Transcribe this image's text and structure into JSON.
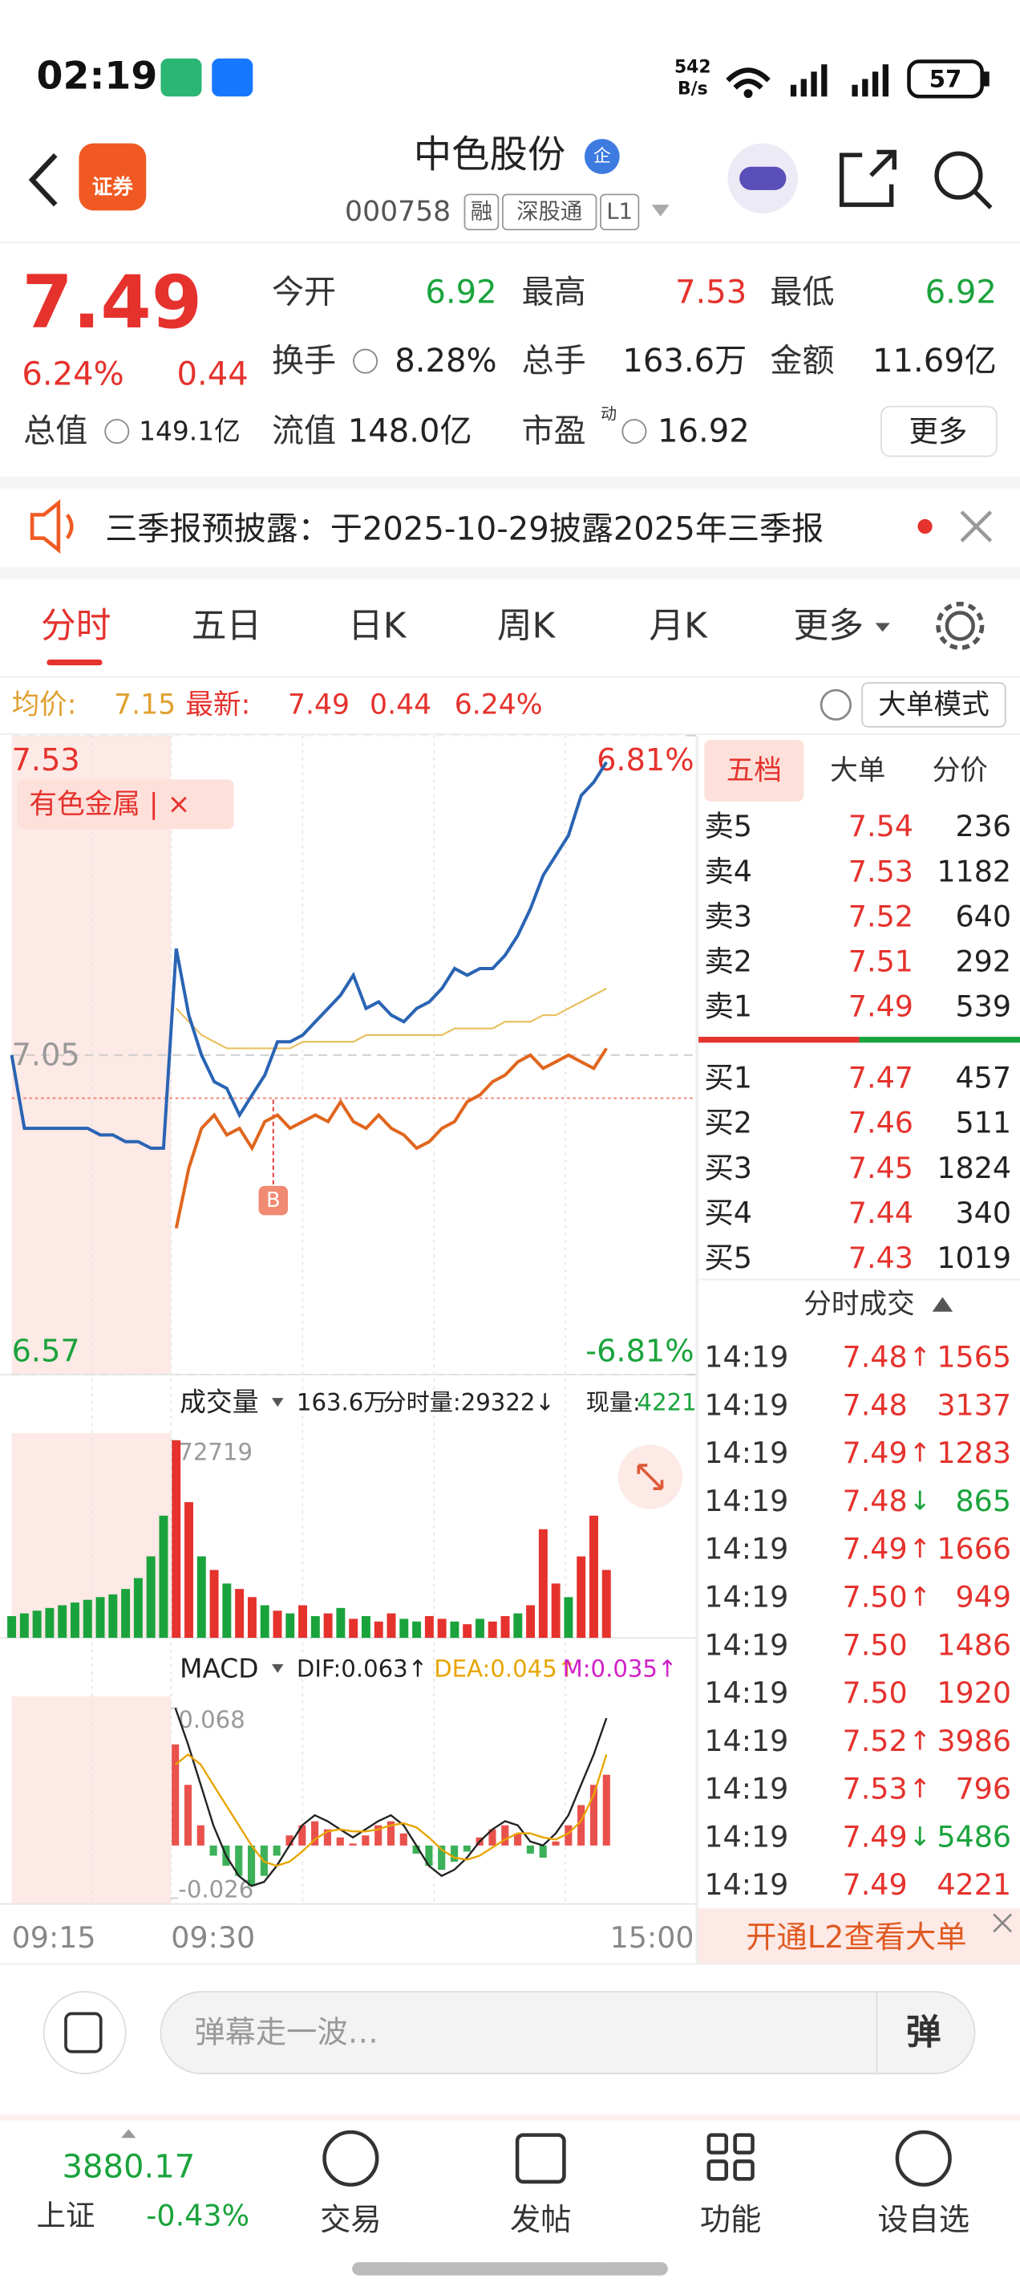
{
  "status_bar": {
    "time": "02:19",
    "net_speed": "542",
    "net_unit": "B/s",
    "battery": "57"
  },
  "header": {
    "logo": "证券",
    "title": "中色股份",
    "badge": "企",
    "code": "000758",
    "tags": [
      "融",
      "深股通",
      "L1"
    ]
  },
  "quote": {
    "price": "7.49",
    "change_pct": "6.24%",
    "change": "0.44",
    "fields": [
      {
        "label": "今开",
        "value": "6.92"
      },
      {
        "label": "最高",
        "value": "7.53"
      },
      {
        "label": "最低",
        "value": "6.92"
      },
      {
        "label": "换手",
        "value": "8.28%"
      },
      {
        "label": "总手",
        "value": "163.6万"
      },
      {
        "label": "金额",
        "value": "11.69亿"
      },
      {
        "label": "总值",
        "value": "149.1亿"
      },
      {
        "label": "流值",
        "value": "148.0亿"
      },
      {
        "label": "市盈",
        "sup": "动",
        "value": "16.92"
      }
    ],
    "more": "更多"
  },
  "notice": {
    "text": "三季报预披露：于2025-10-29披露2025年三季报"
  },
  "tabs": [
    "分时",
    "五日",
    "日K",
    "周K",
    "月K",
    "更多"
  ],
  "info_bar": {
    "avg_label": "均价:",
    "avg": "7.15",
    "latest_label": "最新:",
    "latest": "7.49",
    "change": "0.44",
    "change_pct": "6.24%",
    "mode": "大单模式"
  },
  "chart_data": [
    {
      "type": "line",
      "tag": "有色金属 | ×",
      "marker": "B",
      "x_labels": [
        "09:15",
        "09:30",
        "15:00"
      ],
      "ylim": [
        6.57,
        7.53
      ],
      "yticks": [
        6.57,
        7.05,
        7.53
      ],
      "y2lim": [
        -6.81,
        6.81
      ],
      "y2ticks": [
        {
          "value": -6.81,
          "label": "-6.81%"
        },
        {
          "value": 6.81,
          "label": "6.81%"
        }
      ],
      "series": [
        {
          "color": "#2a64b4",
          "values": [
            7.05,
            6.94,
            6.94,
            6.94,
            6.94,
            6.94,
            6.94,
            6.93,
            6.93,
            6.92,
            6.92,
            6.91,
            6.91,
            7.21,
            7.11,
            7.05,
            7.01,
            7.0,
            6.96,
            6.99,
            7.02,
            7.07,
            7.07,
            7.08,
            7.1,
            7.12,
            7.14,
            7.17,
            7.12,
            7.13,
            7.11,
            7.1,
            7.12,
            7.13,
            7.15,
            7.18,
            7.17,
            7.18,
            7.18,
            7.2,
            7.23,
            7.27,
            7.32,
            7.35,
            7.38,
            7.44,
            7.46,
            7.49
          ]
        },
        {
          "color": "#e8c060",
          "values": [
            null,
            null,
            null,
            null,
            null,
            null,
            null,
            null,
            null,
            null,
            null,
            null,
            null,
            7.12,
            7.1,
            7.08,
            7.07,
            7.06,
            7.06,
            7.06,
            7.06,
            7.06,
            7.06,
            7.07,
            7.07,
            7.07,
            7.07,
            7.07,
            7.08,
            7.08,
            7.08,
            7.08,
            7.08,
            7.08,
            7.08,
            7.09,
            7.09,
            7.09,
            7.09,
            7.1,
            7.1,
            7.1,
            7.11,
            7.11,
            7.12,
            7.13,
            7.14,
            7.15
          ]
        },
        {
          "color": "#e0661e",
          "values": [
            null,
            null,
            null,
            null,
            null,
            null,
            null,
            null,
            null,
            null,
            null,
            null,
            null,
            6.79,
            6.88,
            6.94,
            6.96,
            6.93,
            6.94,
            6.91,
            6.95,
            6.96,
            6.94,
            6.95,
            6.96,
            6.95,
            6.98,
            6.95,
            6.94,
            6.96,
            6.94,
            6.93,
            6.91,
            6.92,
            6.94,
            6.95,
            6.98,
            6.99,
            7.01,
            7.02,
            7.04,
            7.05,
            7.03,
            7.04,
            7.05,
            7.04,
            7.03,
            7.06
          ]
        }
      ]
    },
    {
      "type": "bar",
      "title": "成交量",
      "total": "163.6万",
      "period_volume": "分时量:29322↓",
      "current_label": "现量:",
      "current": "4221",
      "ylim": [
        0,
        72719
      ],
      "yticks": [
        72719
      ],
      "values": [
        8000,
        9000,
        10000,
        11000,
        12000,
        13000,
        14000,
        15000,
        16000,
        18000,
        22000,
        30000,
        45000,
        72719,
        50000,
        30000,
        25000,
        20000,
        18000,
        15000,
        12000,
        10000,
        9000,
        12000,
        8000,
        9000,
        11000,
        7000,
        8000,
        6000,
        9000,
        7000,
        6000,
        8000,
        7000,
        6000,
        5000,
        7000,
        6000,
        8000,
        9000,
        12000,
        40000,
        20000,
        15000,
        30000,
        45000,
        25000
      ],
      "colors": [
        "#1aa33c",
        "#1aa33c",
        "#1aa33c",
        "#1aa33c",
        "#1aa33c",
        "#1aa33c",
        "#1aa33c",
        "#1aa33c",
        "#1aa33c",
        "#1aa33c",
        "#1aa33c",
        "#1aa33c",
        "#1aa33c",
        "#e5322d",
        "#e5322d",
        "#1aa33c",
        "#e5322d",
        "#1aa33c",
        "#e5322d",
        "#e5322d",
        "#1aa33c",
        "#e5322d",
        "#1aa33c",
        "#e5322d",
        "#1aa33c",
        "#e5322d",
        "#1aa33c",
        "#e5322d",
        "#1aa33c",
        "#e5322d",
        "#e5322d",
        "#1aa33c",
        "#1aa33c",
        "#e5322d",
        "#e5322d",
        "#1aa33c",
        "#e5322d",
        "#1aa33c",
        "#e5322d",
        "#e5322d",
        "#1aa33c",
        "#e5322d",
        "#e5322d",
        "#e5322d",
        "#1aa33c",
        "#e5322d",
        "#e5322d",
        "#e5322d"
      ]
    },
    {
      "type": "macd",
      "title": "MACD",
      "ylim": [
        -0.026,
        0.068
      ],
      "yticks": [
        -0.026,
        0.068
      ],
      "series": [
        {
          "name": "DIF:0.063↑",
          "color": "#222222",
          "values": [
            0.068,
            0.05,
            0.03,
            0.01,
            -0.005,
            -0.015,
            -0.02,
            -0.018,
            -0.01,
            0,
            0.01,
            0.015,
            0.012,
            0.008,
            0.004,
            0.008,
            0.012,
            0.015,
            0.01,
            0,
            -0.01,
            -0.015,
            -0.012,
            -0.006,
            0.002,
            0.008,
            0.012,
            0.01,
            0.002,
            0,
            0.006,
            0.015,
            0.03,
            0.045,
            0.063
          ]
        },
        {
          "name": "DEA:0.045↑",
          "color": "#e8a500",
          "values": [
            0.04,
            0.045,
            0.04,
            0.03,
            0.02,
            0.01,
            0,
            -0.008,
            -0.01,
            -0.008,
            -0.003,
            0.003,
            0.007,
            0.008,
            0.007,
            0.007,
            0.008,
            0.01,
            0.011,
            0.009,
            0.004,
            -0.002,
            -0.006,
            -0.007,
            -0.005,
            -0.001,
            0.003,
            0.006,
            0.006,
            0.004,
            0.003,
            0.006,
            0.012,
            0.025,
            0.045
          ]
        },
        {
          "name": "M:0.035↑",
          "color": "#d020c8",
          "values": [
            0.05,
            0.03,
            0.01,
            -0.005,
            -0.01,
            -0.015,
            -0.02,
            -0.015,
            -0.005,
            0.005,
            0.01,
            0.012,
            0.008,
            0.004,
            0.001,
            0.005,
            0.01,
            0.012,
            0.006,
            -0.004,
            -0.01,
            -0.012,
            -0.008,
            -0.003,
            0.004,
            0.008,
            0.01,
            0.006,
            -0.004,
            -0.006,
            0.002,
            0.01,
            0.02,
            0.03,
            0.035
          ]
        }
      ]
    }
  ],
  "order_book": {
    "tabs": [
      "五档",
      "大单",
      "分价"
    ],
    "asks": [
      {
        "label": "卖5",
        "price": "7.54",
        "volume": "236"
      },
      {
        "label": "卖4",
        "price": "7.53",
        "volume": "1182"
      },
      {
        "label": "卖3",
        "price": "7.52",
        "volume": "640"
      },
      {
        "label": "卖2",
        "price": "7.51",
        "volume": "292"
      },
      {
        "label": "卖1",
        "price": "7.49",
        "volume": "539"
      }
    ],
    "bids": [
      {
        "label": "买1",
        "price": "7.47",
        "volume": "457"
      },
      {
        "label": "买2",
        "price": "7.46",
        "volume": "511"
      },
      {
        "label": "买3",
        "price": "7.45",
        "volume": "1824"
      },
      {
        "label": "买4",
        "price": "7.44",
        "volume": "340"
      },
      {
        "label": "买5",
        "price": "7.43",
        "volume": "1019"
      }
    ]
  },
  "trades": {
    "title": "分时成交",
    "rows": [
      {
        "time": "14:19",
        "price": "7.48",
        "arrow": "↑",
        "volume": "1565",
        "color": "#e5322d"
      },
      {
        "time": "14:19",
        "price": "7.48",
        "volume": "3137",
        "color": "#e5322d"
      },
      {
        "time": "14:19",
        "price": "7.49",
        "arrow": "↑",
        "volume": "1283",
        "color": "#e5322d"
      },
      {
        "time": "14:19",
        "price": "7.48",
        "arrow": "↓",
        "volume": "865",
        "color": "#1aa33c"
      },
      {
        "time": "14:19",
        "price": "7.49",
        "arrow": "↑",
        "volume": "1666",
        "color": "#e5322d"
      },
      {
        "time": "14:19",
        "price": "7.50",
        "arrow": "↑",
        "volume": "949",
        "color": "#e5322d"
      },
      {
        "time": "14:19",
        "price": "7.50",
        "volume": "1486",
        "color": "#e5322d"
      },
      {
        "time": "14:19",
        "price": "7.50",
        "volume": "1920",
        "color": "#e5322d"
      },
      {
        "time": "14:19",
        "price": "7.52",
        "arrow": "↑",
        "volume": "3986",
        "color": "#e5322d"
      },
      {
        "time": "14:19",
        "price": "7.53",
        "arrow": "↑",
        "volume": "796",
        "color": "#e5322d"
      },
      {
        "time": "14:19",
        "price": "7.49",
        "arrow": "↓",
        "volume": "5486",
        "color": "#1aa33c"
      },
      {
        "time": "14:19",
        "price": "7.49",
        "volume": "4221",
        "color": "#e5322d"
      }
    ]
  },
  "l2_banner": "开通L2查看大单",
  "comment": {
    "placeholder": "弹幕走一波…",
    "button": "弹"
  },
  "bottom_nav": {
    "index_value": "3880.17",
    "index_name": "上证",
    "index_change": "-0.43%",
    "items": [
      "交易",
      "发帖",
      "功能",
      "设自选"
    ]
  }
}
